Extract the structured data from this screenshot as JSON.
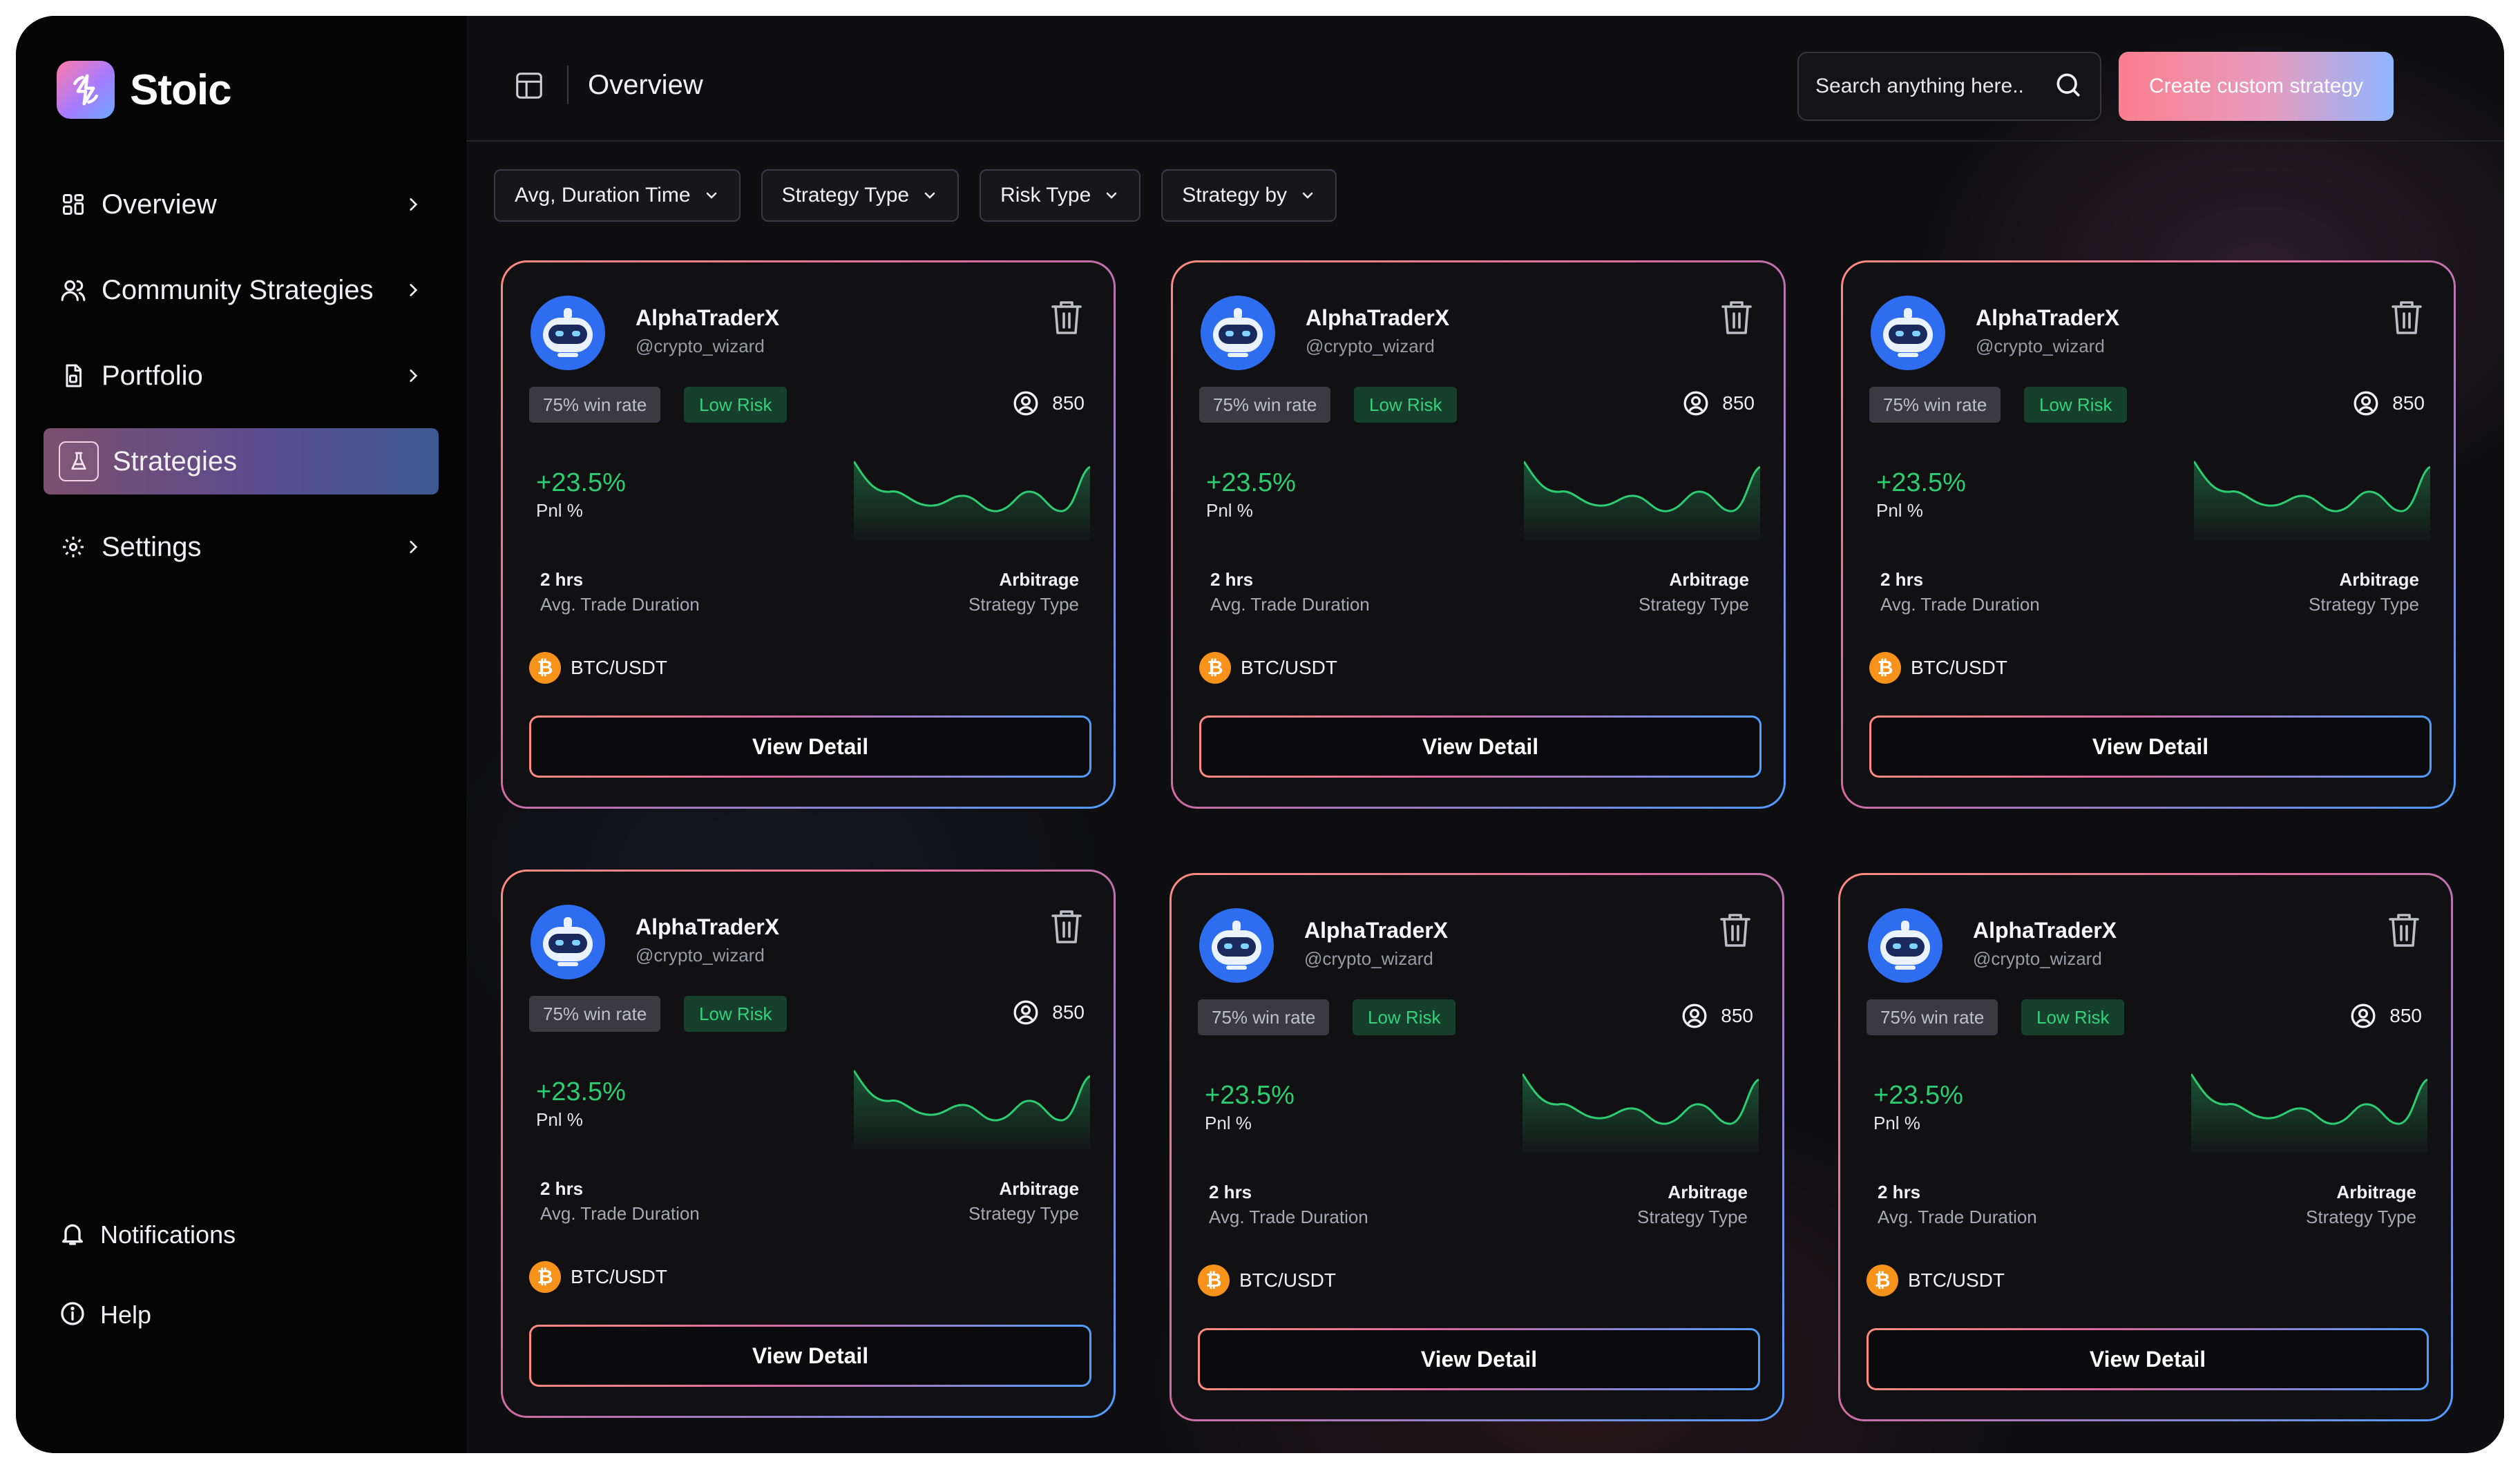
{
  "brand": {
    "name": "Stoic",
    "logo_icon": "lightning-swirl-icon"
  },
  "sidebar": {
    "items": [
      {
        "label": "Overview",
        "icon": "grid-icon",
        "chevron": true,
        "active": false
      },
      {
        "label": "Community Strategies",
        "icon": "users-icon",
        "chevron": true,
        "active": false
      },
      {
        "label": "Portfolio",
        "icon": "document-icon",
        "chevron": true,
        "active": false
      },
      {
        "label": "Strategies",
        "icon": "flask-icon",
        "chevron": false,
        "active": true
      },
      {
        "label": "Settings",
        "icon": "gear-icon",
        "chevron": true,
        "active": false
      }
    ],
    "bottom": [
      {
        "label": "Notifications",
        "icon": "bell-icon"
      },
      {
        "label": "Help",
        "icon": "info-icon"
      }
    ]
  },
  "header": {
    "title": "Overview",
    "search_placeholder": "Search anything here..",
    "create_label": "Create custom strategy"
  },
  "filters": [
    "Avg, Duration Time",
    "Strategy Type",
    "Risk Type",
    "Strategy by"
  ],
  "cards": [
    {
      "name": "AlphaTraderX",
      "handle": "@crypto_wizard",
      "win_rate": "75% win rate",
      "risk": "Low Risk",
      "followers": "850",
      "pnl_value": "+23.5%",
      "pnl_label": "Pnl %",
      "duration": "2 hrs",
      "duration_label": "Avg. Trade Duration",
      "strategy_type": "Arbitrage",
      "strategy_type_label": "Strategy Type",
      "pair": "BTC/USDT",
      "cta": "View Detail"
    },
    {
      "name": "AlphaTraderX",
      "handle": "@crypto_wizard",
      "win_rate": "75% win rate",
      "risk": "Low Risk",
      "followers": "850",
      "pnl_value": "+23.5%",
      "pnl_label": "Pnl %",
      "duration": "2 hrs",
      "duration_label": "Avg. Trade Duration",
      "strategy_type": "Arbitrage",
      "strategy_type_label": "Strategy Type",
      "pair": "BTC/USDT",
      "cta": "View Detail"
    },
    {
      "name": "AlphaTraderX",
      "handle": "@crypto_wizard",
      "win_rate": "75% win rate",
      "risk": "Low Risk",
      "followers": "850",
      "pnl_value": "+23.5%",
      "pnl_label": "Pnl %",
      "duration": "2 hrs",
      "duration_label": "Avg. Trade Duration",
      "strategy_type": "Arbitrage",
      "strategy_type_label": "Strategy Type",
      "pair": "BTC/USDT",
      "cta": "View Detail"
    },
    {
      "name": "AlphaTraderX",
      "handle": "@crypto_wizard",
      "win_rate": "75% win rate",
      "risk": "Low Risk",
      "followers": "850",
      "pnl_value": "+23.5%",
      "pnl_label": "Pnl %",
      "duration": "2 hrs",
      "duration_label": "Avg. Trade Duration",
      "strategy_type": "Arbitrage",
      "strategy_type_label": "Strategy Type",
      "pair": "BTC/USDT",
      "cta": "View Detail"
    },
    {
      "name": "AlphaTraderX",
      "handle": "@crypto_wizard",
      "win_rate": "75% win rate",
      "risk": "Low Risk",
      "followers": "850",
      "pnl_value": "+23.5%",
      "pnl_label": "Pnl %",
      "duration": "2 hrs",
      "duration_label": "Avg. Trade Duration",
      "strategy_type": "Arbitrage",
      "strategy_type_label": "Strategy Type",
      "pair": "BTC/USDT",
      "cta": "View Detail"
    },
    {
      "name": "AlphaTraderX",
      "handle": "@crypto_wizard",
      "win_rate": "75% win rate",
      "risk": "Low Risk",
      "followers": "850",
      "pnl_value": "+23.5%",
      "pnl_label": "Pnl %",
      "duration": "2 hrs",
      "duration_label": "Avg. Trade Duration",
      "strategy_type": "Arbitrage",
      "strategy_type_label": "Strategy Type",
      "pair": "BTC/USDT",
      "cta": "View Detail"
    }
  ],
  "colors": {
    "accent_gradient_start": "#fb7f8e",
    "accent_gradient_end": "#8fb6ff",
    "positive": "#2ecc71",
    "risk_badge_bg": "#16402c",
    "bitcoin": "#f7931a"
  }
}
